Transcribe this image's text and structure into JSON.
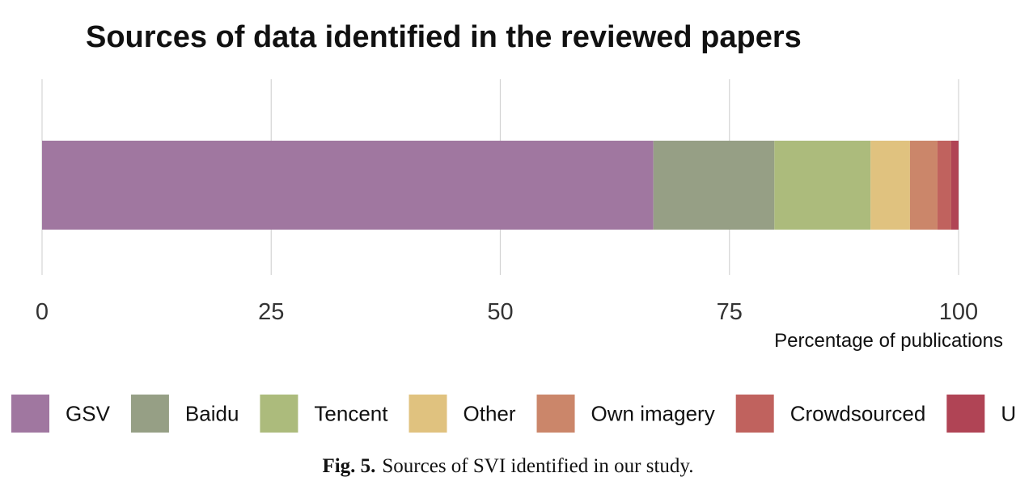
{
  "chart_data": {
    "type": "bar",
    "orientation": "horizontal",
    "stacked": true,
    "title": "Sources of data identified in the reviewed papers",
    "xlabel": "Percentage of publications",
    "ylabel": "",
    "xlim": [
      0,
      100
    ],
    "x_ticks": [
      "0",
      "25",
      "50",
      "75",
      "100"
    ],
    "grid": "vertical",
    "legend_placement": "bottom",
    "series": [
      {
        "name": "GSV",
        "value": 66.7,
        "color": "#a077a0"
      },
      {
        "name": "Baidu",
        "value": 13.2,
        "color": "#969f85"
      },
      {
        "name": "Tencent",
        "value": 10.5,
        "color": "#acbb7c"
      },
      {
        "name": "Other",
        "value": 4.3,
        "color": "#e0c27f"
      },
      {
        "name": "Own imagery",
        "value": 3.0,
        "color": "#cb866a"
      },
      {
        "name": "Crowdsourced",
        "value": 1.5,
        "color": "#c0625e"
      },
      {
        "name": "Unknown",
        "value": 0.8,
        "color": "#b04455"
      }
    ]
  },
  "caption": {
    "label": "Fig. 5.",
    "text": "Sources of SVI identified in our study."
  }
}
